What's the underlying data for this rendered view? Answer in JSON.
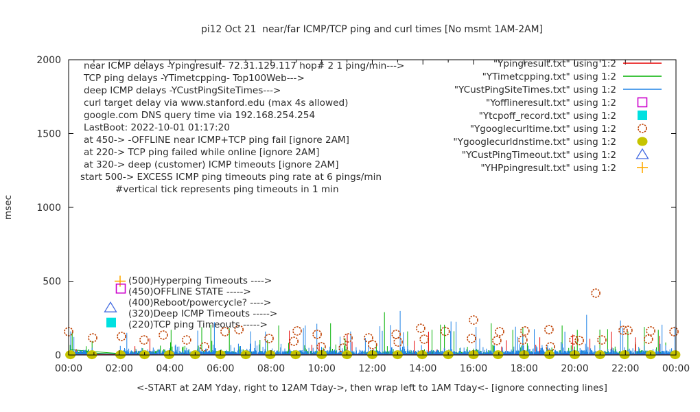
{
  "chart_data": {
    "type": "mixed: impulse time-series + scatter markers",
    "title": "pi12 Oct 21  near/far ICMP/TCP ping and curl times [No msmt 1AM-2AM]",
    "ylabel": "msec",
    "xlabel": "<-START at 2AM Yday, right to 12AM Tday->, then wrap left to 1AM Tday<- [ignore connecting lines]",
    "xlim_hours": [
      0,
      24
    ],
    "ylim": [
      0,
      2000
    ],
    "yticks": [
      0,
      500,
      1000,
      1500,
      2000
    ],
    "xticks": [
      {
        "h": 0,
        "label": "00:00"
      },
      {
        "h": 2,
        "label": "02:00"
      },
      {
        "h": 4,
        "label": "04:00"
      },
      {
        "h": 6,
        "label": "06:00"
      },
      {
        "h": 8,
        "label": "08:00"
      },
      {
        "h": 10,
        "label": "10:00"
      },
      {
        "h": 12,
        "label": "12:00"
      },
      {
        "h": 14,
        "label": "14:00"
      },
      {
        "h": 16,
        "label": "16:00"
      },
      {
        "h": 18,
        "label": "18:00"
      },
      {
        "h": 20,
        "label": "20:00"
      },
      {
        "h": 22,
        "label": "22:00"
      },
      {
        "h": 24,
        "label": "00:00"
      }
    ],
    "minor_xtick_every_hours": 1,
    "grid": false,
    "legend_position": "top-right",
    "no_measurement_gap_hours": [
      1.03,
      2.02
    ],
    "legend": [
      {
        "label": "\"Ypingresult.txt\" using 1:2",
        "marker": "line",
        "color": "#e60000"
      },
      {
        "label": "\"YTimetcpping.txt\" using 1:2",
        "marker": "line",
        "color": "#00b000"
      },
      {
        "label": "\"YCustPingSiteTimes.txt\" using 1:2",
        "marker": "line",
        "color": "#1e82e6"
      },
      {
        "label": "\"Yofflineresult.txt\" using 1:2",
        "marker": "square-open",
        "color": "#cc00cc"
      },
      {
        "label": "\"Ytcpoff_record.txt\" using 1:2",
        "marker": "square-filled",
        "color": "#00e0e0"
      },
      {
        "label": "\"Ygooglecurltime.txt\" using 1:2",
        "marker": "circle-open",
        "color": "#bf4000"
      },
      {
        "label": "\"Ygooglecurldnstime.txt\" using 1:2",
        "marker": "circle-filled",
        "color": "#c6c400"
      },
      {
        "label": "\"YCustPingTimeout.txt\" using 1:2",
        "marker": "triangle-open",
        "color": "#4169e1"
      },
      {
        "label": "\"YHPpingresult.txt\" using 1:2",
        "marker": "plus",
        "color": "#ffaa00"
      }
    ],
    "annotations_topleft": [
      {
        "text": "near ICMP delays -Ypingresult- 72.31.129.117 hop# 2 1 ping/min--->",
        "indent": 0
      },
      {
        "text": "TCP ping delays -YTimetcpping- Top100Web--->",
        "indent": 0
      },
      {
        "text": "deep ICMP delays -YCustPingSiteTimes--->",
        "indent": 0
      },
      {
        "text": "curl target delay via www.stanford.edu (max 4s allowed)",
        "indent": 0
      },
      {
        "text": "google.com DNS query time via 192.168.254.254",
        "indent": 0
      },
      {
        "text": "LastBoot: 2022-10-01 01:17:20",
        "indent": 0
      },
      {
        "text": "at 450-> -OFFLINE near ICMP+TCP ping fail [ignore 2AM]",
        "indent": 0
      },
      {
        "text": "at 220-> TCP ping failed while online [ignore 2AM]",
        "indent": 0
      },
      {
        "text": "at 320-> deep (customer) ICMP timeouts [ignore 2AM]",
        "indent": 0
      },
      {
        "text": "start 500-> EXCESS ICMP ping timeouts ping rate at 6 pings/min",
        "indent": -5
      },
      {
        "text": "#vertical tick represents ping timeouts in 1 min",
        "indent": 46
      }
    ],
    "annotations_mid": [
      {
        "value": 500,
        "marker": "plus",
        "color": "#ffaa00",
        "text": "(500)Hyperping Timeouts ---->"
      },
      {
        "value": 450,
        "marker": "square-open",
        "color": "#cc00cc",
        "text": "(450)OFFLINE STATE ----->"
      },
      {
        "value": 400,
        "marker": "none",
        "color": "",
        "text": "(400)Reboot/powercycle? ---->"
      },
      {
        "value": 320,
        "marker": "triangle-open",
        "color": "#4169e1",
        "text": "(320)Deep ICMP Timeouts ----->"
      },
      {
        "value": 220,
        "marker": "square-filled",
        "color": "#00e0e0",
        "text": "(220)TCP ping Timeouts ----->"
      }
    ],
    "impulse_series": [
      {
        "name": "TCP ping delays (YTimetcpping)",
        "color": "#00b000",
        "step_min": 2,
        "seed": 7,
        "base": 3,
        "base_amp": 26,
        "mid_p": 0.18,
        "mid_amp": 95,
        "big_p": 0.012,
        "big_base": 80,
        "big_amp": 120,
        "landmarks": [
          [
            0.14,
            150
          ],
          [
            4.05,
            170
          ],
          [
            5.62,
            205
          ],
          [
            6.35,
            180
          ],
          [
            8.3,
            200
          ],
          [
            10.35,
            215
          ],
          [
            12.48,
            290
          ],
          [
            14.85,
            205
          ],
          [
            16.7,
            215
          ],
          [
            17.55,
            170
          ],
          [
            17.95,
            185
          ],
          [
            19.5,
            200
          ],
          [
            20.1,
            170
          ],
          [
            21.3,
            175
          ],
          [
            22.1,
            160
          ],
          [
            22.75,
            190
          ],
          [
            23.3,
            170
          ]
        ]
      },
      {
        "name": "near ICMP delays (Ypingresult)",
        "color": "#e60000",
        "step_min": 3,
        "seed": 11,
        "base": 1,
        "base_amp": 9,
        "mid_p": 0.05,
        "mid_amp": 70,
        "big_p": 0.01,
        "big_base": 60,
        "big_amp": 100,
        "landmarks": [
          [
            0.3,
            40
          ],
          [
            2.62,
            60
          ],
          [
            8.72,
            165
          ],
          [
            9.9,
            80
          ],
          [
            11.2,
            90
          ],
          [
            14.22,
            158
          ],
          [
            17.3,
            100
          ],
          [
            18.62,
            120
          ],
          [
            19.92,
            138
          ],
          [
            20.6,
            110
          ],
          [
            21.45,
            158
          ],
          [
            22.4,
            120
          ],
          [
            23.35,
            130
          ]
        ]
      },
      {
        "name": "deep ICMP delays (YCustPingSiteTimes)",
        "color": "#1e82e6",
        "step_min": 1,
        "seed": 3,
        "base": 4,
        "base_amp": 28,
        "mid_p": 0.25,
        "mid_amp": 62,
        "big_p": 0.015,
        "big_base": 80,
        "big_amp": 140,
        "landmarks": [
          [
            0.08,
            160
          ],
          [
            2.3,
            150
          ],
          [
            5.1,
            165
          ],
          [
            7.2,
            160
          ],
          [
            9.35,
            200
          ],
          [
            12.3,
            195
          ],
          [
            13.1,
            298
          ],
          [
            16.1,
            190
          ],
          [
            18.4,
            175
          ],
          [
            20.47,
            272
          ],
          [
            21.9,
            185
          ],
          [
            23.45,
            205
          ]
        ]
      }
    ],
    "scatter_series": [
      {
        "name": "Ygooglecurltime (curl delay)",
        "marker": "circle-open",
        "color": "#bf4000",
        "points": [
          [
            0.0,
            158
          ],
          [
            0.95,
            116
          ],
          [
            2.09,
            126
          ],
          [
            2.98,
            102
          ],
          [
            3.74,
            135
          ],
          [
            4.66,
            102
          ],
          [
            5.37,
            56
          ],
          [
            6.18,
            158
          ],
          [
            6.73,
            172
          ],
          [
            7.92,
            112
          ],
          [
            8.9,
            93
          ],
          [
            9.03,
            163
          ],
          [
            9.82,
            140
          ],
          [
            9.98,
            56
          ],
          [
            10.85,
            47
          ],
          [
            11.04,
            116
          ],
          [
            11.85,
            116
          ],
          [
            12.01,
            70
          ],
          [
            12.94,
            140
          ],
          [
            13.02,
            88
          ],
          [
            13.91,
            181
          ],
          [
            14.05,
            107
          ],
          [
            14.88,
            160
          ],
          [
            15.92,
            112
          ],
          [
            16.0,
            237
          ],
          [
            16.92,
            98
          ],
          [
            17.03,
            158
          ],
          [
            17.95,
            102
          ],
          [
            18.03,
            163
          ],
          [
            18.98,
            172
          ],
          [
            19.04,
            56
          ],
          [
            19.96,
            102
          ],
          [
            20.18,
            98
          ],
          [
            20.83,
            419
          ],
          [
            21.07,
            102
          ],
          [
            21.91,
            167
          ],
          [
            22.1,
            167
          ],
          [
            22.91,
            107
          ],
          [
            23.0,
            163
          ],
          [
            23.92,
            158
          ]
        ]
      },
      {
        "name": "Ygooglecurldnstime (DNS query time)",
        "marker": "circle-filled",
        "color": "#c6c400",
        "points": [
          [
            0.07,
            2
          ],
          [
            0.92,
            2
          ],
          [
            2.05,
            2
          ],
          [
            3.0,
            2
          ],
          [
            3.97,
            2
          ],
          [
            5.0,
            2
          ],
          [
            6.0,
            2
          ],
          [
            7.0,
            2
          ],
          [
            7.97,
            2
          ],
          [
            8.97,
            2
          ],
          [
            10.0,
            2
          ],
          [
            11.0,
            2
          ],
          [
            12.0,
            2
          ],
          [
            13.0,
            2
          ],
          [
            13.97,
            2
          ],
          [
            15.0,
            2
          ],
          [
            16.0,
            2
          ],
          [
            16.97,
            2
          ],
          [
            18.0,
            2
          ],
          [
            19.0,
            2
          ],
          [
            20.0,
            2
          ],
          [
            21.0,
            2
          ],
          [
            21.97,
            2
          ],
          [
            23.0,
            2
          ],
          [
            23.97,
            2
          ]
        ]
      }
    ],
    "connecting_lines": [
      {
        "color": "#00b000",
        "points": [
          [
            0.08,
            36
          ],
          [
            2.06,
            9
          ]
        ]
      },
      {
        "color": "#00b000",
        "points": [
          [
            0.08,
            20
          ],
          [
            2.06,
            5
          ]
        ]
      },
      {
        "color": "#1e82e6",
        "points": [
          [
            0.08,
            12
          ],
          [
            2.06,
            5
          ]
        ]
      },
      {
        "color": "#e60000",
        "points": [
          [
            0.08,
            5
          ],
          [
            2.06,
            2
          ]
        ]
      }
    ],
    "baseline": {
      "color": "#e60000",
      "value": 1
    }
  },
  "palette": {
    "background": "#ffffff",
    "border": "#000000",
    "text": "#2b2b2b"
  }
}
